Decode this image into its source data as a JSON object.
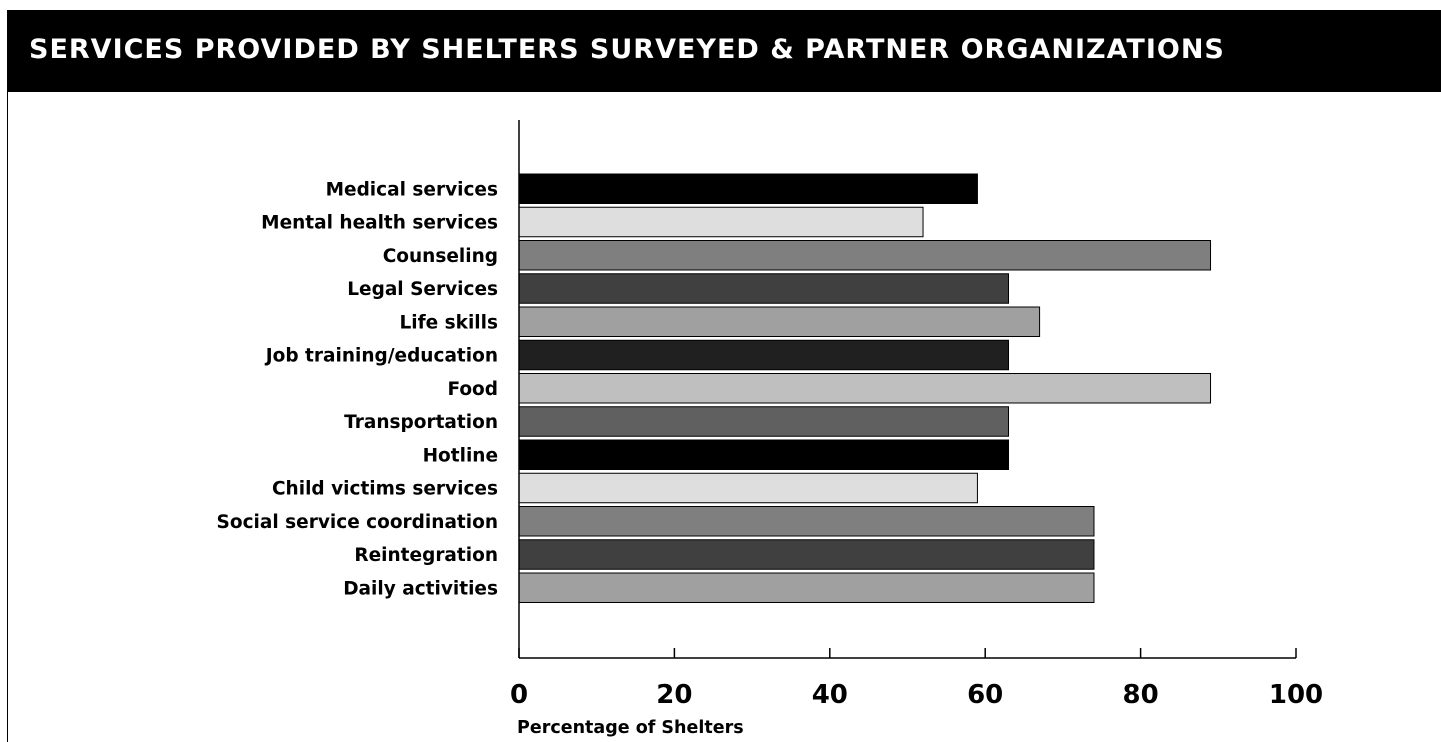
{
  "title": "SERVICES PROVIDED BY SHELTERS SURVEYED & PARTNER ORGANIZATIONS",
  "chart_data": {
    "type": "bar",
    "orientation": "horizontal",
    "title": "SERVICES PROVIDED BY SHELTERS SURVEYED & PARTNER ORGANIZATIONS",
    "xlabel": "Percentage of Shelters",
    "ylabel": "",
    "xlim": [
      0,
      100
    ],
    "xticks": [
      0,
      20,
      40,
      60,
      80,
      100
    ],
    "grid": false,
    "legend": "none",
    "categories": [
      "Medical services",
      "Mental health services",
      "Counseling",
      "Legal Services",
      "Life skills",
      "Job training/education",
      "Food",
      "Transportation",
      "Hotline",
      "Child victims services",
      "Social service coordination",
      "Reintegration",
      "Daily activities"
    ],
    "values": [
      59,
      52,
      89,
      63,
      67,
      63,
      89,
      63,
      63,
      59,
      74,
      74,
      74
    ],
    "colors": [
      "#000000",
      "#dedede",
      "#7f7f7f",
      "#404040",
      "#a0a0a0",
      "#202020",
      "#bfbfbf",
      "#606060",
      "#000000",
      "#dedede",
      "#7f7f7f",
      "#404040",
      "#a0a0a0"
    ]
  }
}
